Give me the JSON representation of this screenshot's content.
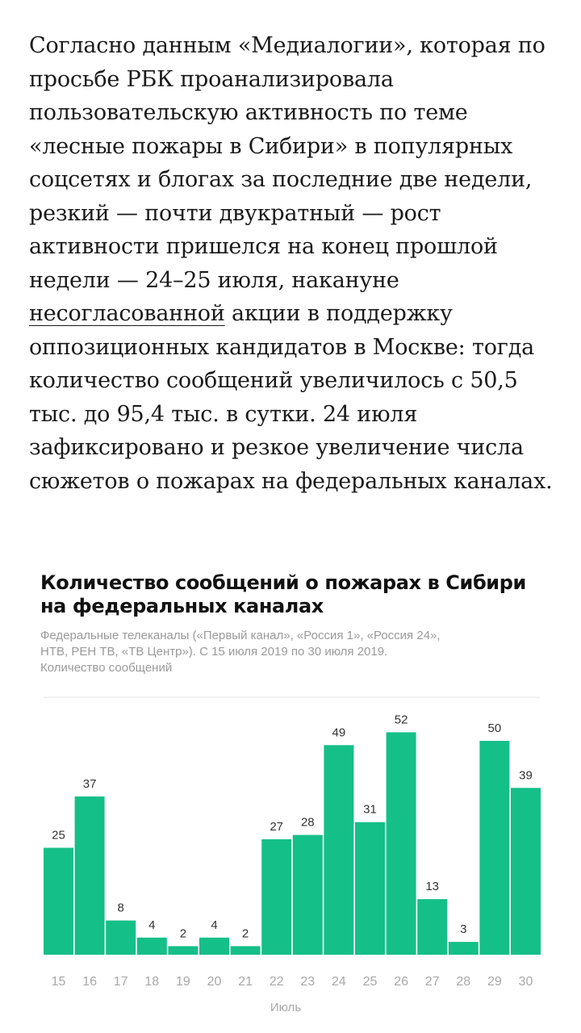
{
  "article": {
    "before_link": "Согласно данным «Медиалогии», которая по просьбе РБК проанализировала пользовательскую активность по теме «лесные пожары в Сибири» в популярных соцсетях и блогах за последние две недели, резкий — почти двукратный — рост активности пришелся на конец прошлой недели — 24–25 июля, накануне ",
    "link_text": "несогласованной",
    "after_link": " акции в поддержку оппозиционных кандидатов в Москве: тогда количество сообщений увеличилось с 50,5 тыс. до 95,4 тыс. в сутки. 24 июля зафиксировано и резкое увеличение числа сюжетов о пожарах на федеральных каналах."
  },
  "chart_data": {
    "type": "bar",
    "title_line1": "Количество сообщений о пожарах в Сибири",
    "title_line2": "на федеральных каналах",
    "subtitle_line1": "Федеральные телеканалы («Первый канал», «Россия 1», «Россия 24»,",
    "subtitle_line2": "НТВ, РЕН ТВ, «ТВ Центр»). С 15 июля 2019 по 30 июля 2019.",
    "ylabel": "Количество сообщений",
    "xlabel": "Июль",
    "categories": [
      "15",
      "16",
      "17",
      "18",
      "19",
      "20",
      "21",
      "22",
      "23",
      "24",
      "25",
      "26",
      "27",
      "28",
      "29",
      "30"
    ],
    "values": [
      25,
      37,
      8,
      4,
      2,
      4,
      2,
      27,
      28,
      49,
      31,
      52,
      13,
      3,
      50,
      39
    ],
    "ylim": [
      0,
      60
    ],
    "grid": false,
    "bar_color": "#15bf88"
  }
}
